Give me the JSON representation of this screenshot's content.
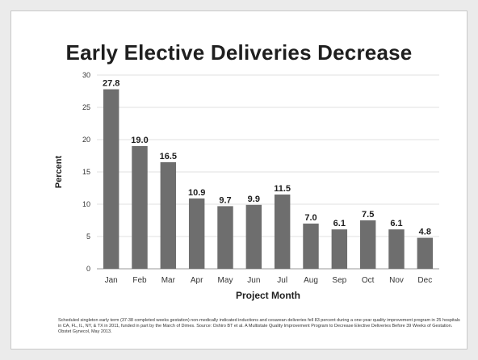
{
  "chart_data": {
    "type": "bar",
    "title": "Early Elective Deliveries Decrease",
    "xlabel": "Project Month",
    "ylabel": "Percent",
    "ylim": [
      0,
      30
    ],
    "yticks": [
      0,
      5,
      10,
      15,
      20,
      25,
      30
    ],
    "grid": true,
    "bar_color": "#6e6e6e",
    "categories": [
      "Jan",
      "Feb",
      "Mar",
      "Apr",
      "May",
      "Jun",
      "Jul",
      "Aug",
      "Sep",
      "Oct",
      "Nov",
      "Dec"
    ],
    "values": [
      27.8,
      19.0,
      16.5,
      10.9,
      9.7,
      9.9,
      11.5,
      7.0,
      6.1,
      7.5,
      6.1,
      4.8
    ],
    "data_labels": [
      "27.8",
      "19.0",
      "16.5",
      "10.9",
      "9.7",
      "9.9",
      "11.5",
      "7.0",
      "6.1",
      "7.5",
      "6.1",
      "4.8"
    ]
  },
  "footnote": "Scheduled singleton early term (37-38 completed weeks gestation) non-medically indicated inductions and cesarean deliveries fell 83 percent during a one-year quality improvement program in 25 hospitals in CA, FL, IL, NY, & TX in 2011, funded in part by the March of Dimes. Source: Oshiro BT et al. A Multistate Quality Improvement Program to Decrease Elective Deliveries Before 39 Weeks of Gestation. Obstet Gynecol, May 2013."
}
